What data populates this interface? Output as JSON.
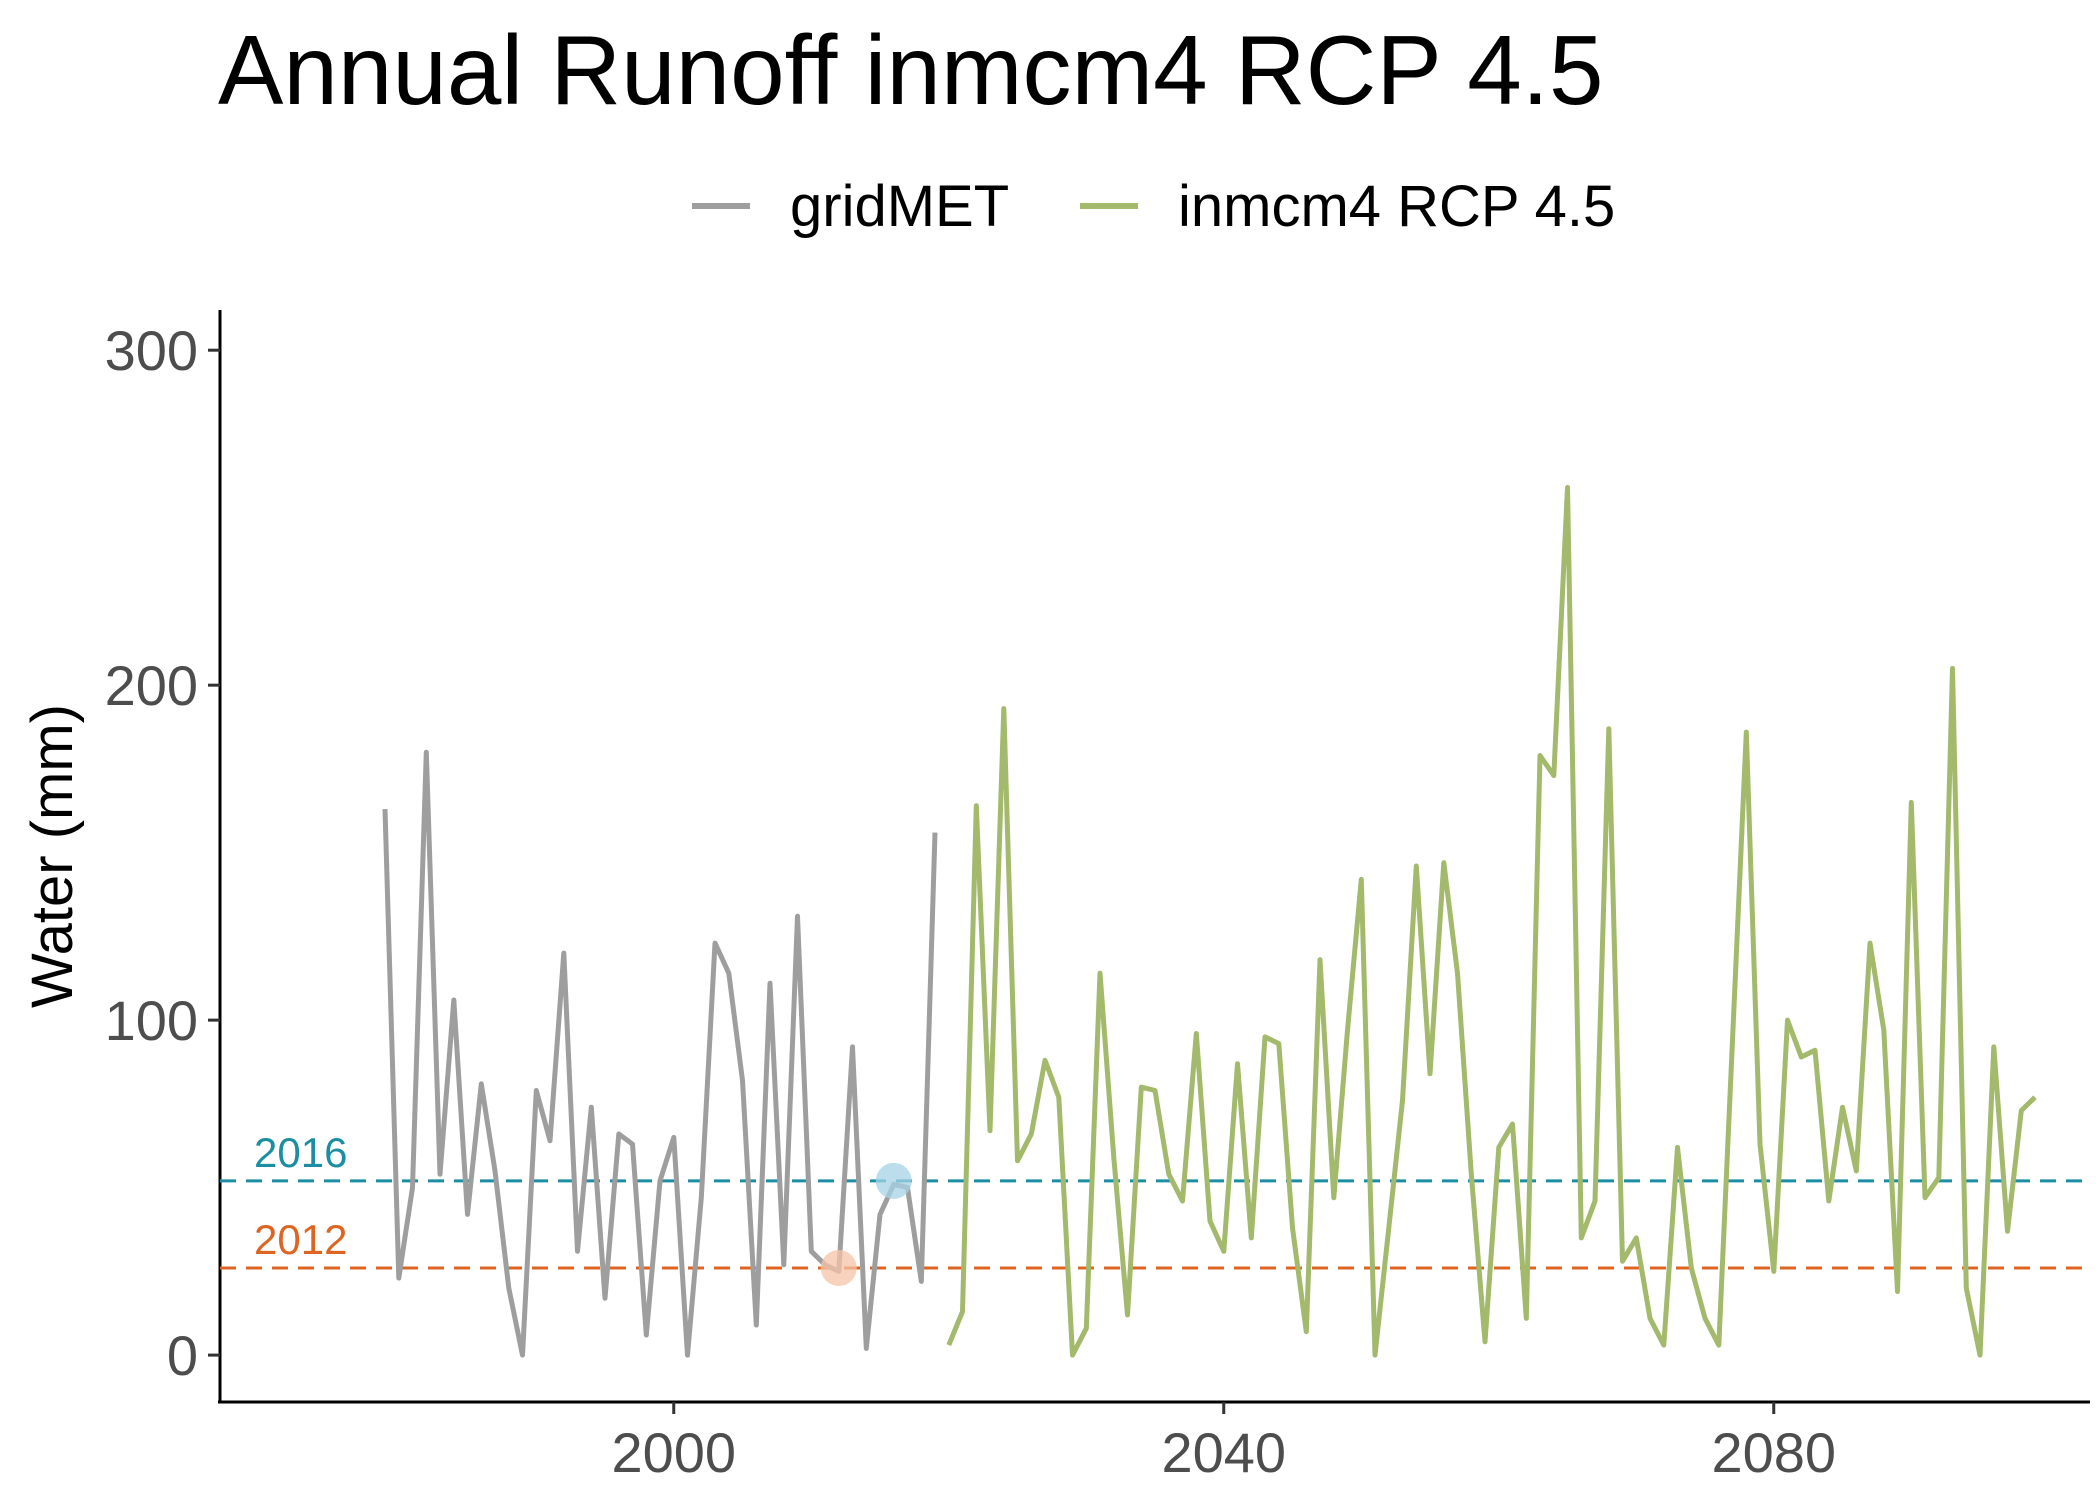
{
  "chart_data": {
    "type": "line",
    "title": "Annual Runoff inmcm4 RCP 4.5",
    "xlabel": "",
    "ylabel": "Water (mm)",
    "xlim": [
      1967,
      2103
    ],
    "ylim": [
      -14,
      312
    ],
    "x_ticks": [
      2000,
      2040,
      2080
    ],
    "y_ticks": [
      0,
      100,
      200,
      300
    ],
    "grid": false,
    "legend_position": "top",
    "series": [
      {
        "name": "gridMET",
        "color": "#9e9e9e",
        "x": [
          1979,
          1980,
          1981,
          1982,
          1983,
          1984,
          1985,
          1986,
          1987,
          1988,
          1989,
          1990,
          1991,
          1992,
          1993,
          1994,
          1995,
          1996,
          1997,
          1998,
          1999,
          2000,
          2001,
          2002,
          2003,
          2004,
          2005,
          2006,
          2007,
          2008,
          2009,
          2010,
          2011,
          2012,
          2013,
          2014,
          2015,
          2016,
          2017,
          2018,
          2019
        ],
        "y": [
          163,
          23,
          50,
          180,
          54,
          106,
          42,
          81,
          55,
          20,
          0,
          79,
          64,
          120,
          31,
          74,
          17,
          66,
          63,
          6,
          52,
          65,
          0,
          47,
          123,
          114,
          82,
          9,
          111,
          27,
          131,
          31,
          27,
          25,
          92,
          2,
          42,
          51,
          50,
          22,
          156
        ]
      },
      {
        "name": "inmcm4 RCP 4.5",
        "color": "#a3b96c",
        "x": [
          2020,
          2021,
          2022,
          2023,
          2024,
          2025,
          2026,
          2027,
          2028,
          2029,
          2030,
          2031,
          2032,
          2033,
          2034,
          2035,
          2036,
          2037,
          2038,
          2039,
          2040,
          2041,
          2042,
          2043,
          2044,
          2045,
          2046,
          2047,
          2048,
          2049,
          2050,
          2051,
          2052,
          2053,
          2054,
          2055,
          2056,
          2057,
          2058,
          2059,
          2060,
          2061,
          2062,
          2063,
          2064,
          2065,
          2066,
          2067,
          2068,
          2069,
          2070,
          2071,
          2072,
          2073,
          2074,
          2075,
          2076,
          2077,
          2078,
          2079,
          2080,
          2081,
          2082,
          2083,
          2084,
          2085,
          2086,
          2087,
          2088,
          2089,
          2090,
          2091,
          2092,
          2093,
          2094,
          2095,
          2096,
          2097,
          2098,
          2099
        ],
        "y": [
          3,
          13,
          164,
          67,
          193,
          58,
          66,
          88,
          77,
          0,
          8,
          114,
          59,
          12,
          80,
          79,
          54,
          46,
          96,
          40,
          31,
          87,
          35,
          95,
          93,
          38,
          7,
          118,
          47,
          97,
          142,
          0,
          38,
          76,
          146,
          84,
          147,
          114,
          54,
          4,
          62,
          69,
          11,
          179,
          173,
          259,
          35,
          46,
          187,
          28,
          35,
          11,
          3,
          62,
          26,
          11,
          3,
          94,
          186,
          63,
          25,
          100,
          89,
          91,
          46,
          74,
          55,
          123,
          97,
          19,
          165,
          47,
          53,
          205,
          20,
          0,
          92,
          37,
          73,
          77
        ]
      }
    ],
    "reference_lines": [
      {
        "label": "2016",
        "y": 52,
        "color": "#1c8ea3"
      },
      {
        "label": "2012",
        "y": 26,
        "color": "#de6521"
      }
    ],
    "highlight_points": [
      {
        "x": 2016,
        "y": 52,
        "color": "#a6d3e6"
      },
      {
        "x": 2012,
        "y": 26,
        "color": "#f6c3a6"
      }
    ]
  }
}
